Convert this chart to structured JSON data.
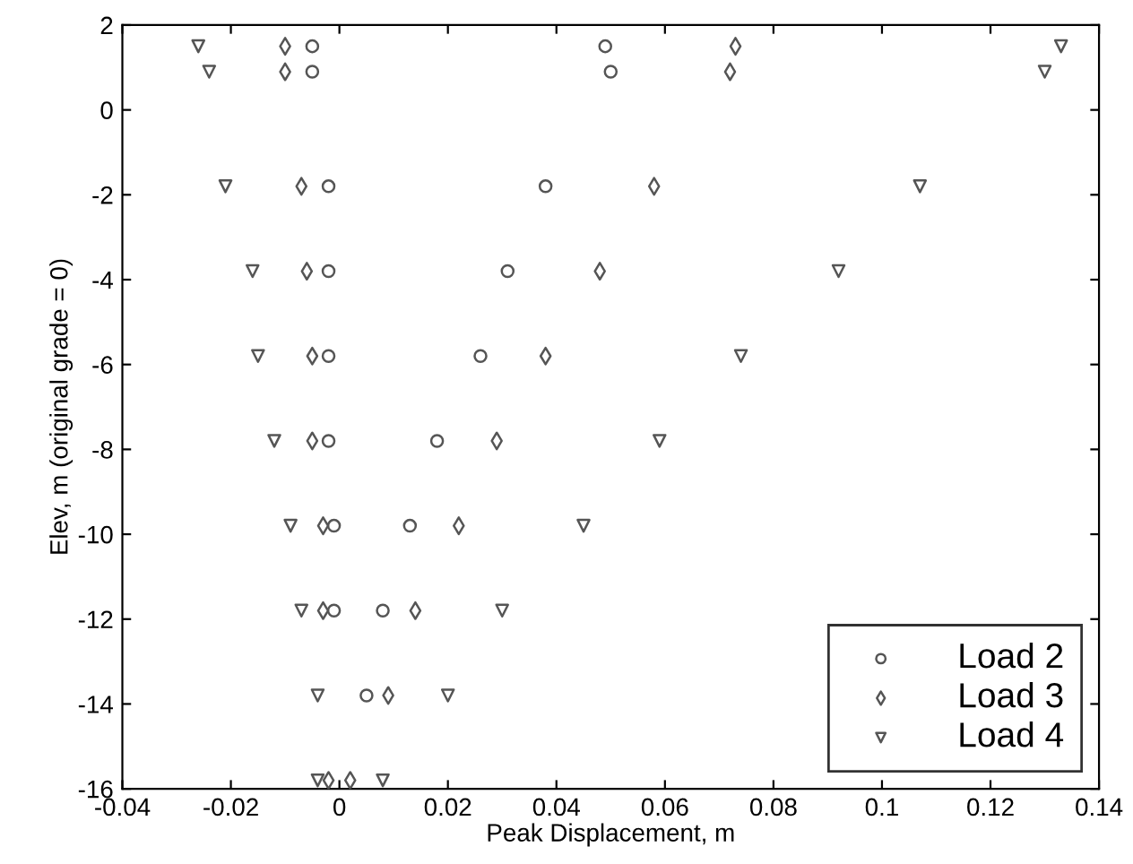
{
  "chart_data": {
    "type": "scatter",
    "xlabel": "Peak Displacement, m",
    "ylabel": "Elev, m (original grade = 0)",
    "xlim": [
      -0.04,
      0.14
    ],
    "xticks": [
      -0.04,
      -0.02,
      0,
      0.02,
      0.04,
      0.06,
      0.08,
      0.1,
      0.12,
      0.14
    ],
    "ylim": [
      -16,
      2
    ],
    "yticks": [
      -16,
      -14,
      -12,
      -10,
      -8,
      -6,
      -4,
      -2,
      0,
      2
    ],
    "grid": false,
    "legend": "bottom right",
    "series": [
      {
        "name": "Load 2",
        "color": "#555555",
        "marker": "circle",
        "x": [
          -0.005,
          0.049,
          -0.005,
          0.05,
          -0.002,
          0.038,
          -0.002,
          0.031,
          -0.002,
          0.026,
          -0.002,
          0.018,
          -0.001,
          0.013,
          -0.001,
          0.008,
          null,
          0.005,
          null,
          null
        ],
        "values": [
          1.5,
          1.5,
          0.9,
          0.9,
          -1.8,
          -1.8,
          -3.8,
          -3.8,
          -5.8,
          -5.8,
          -7.8,
          -7.8,
          -9.8,
          -9.8,
          -11.8,
          -11.8,
          null,
          -13.8,
          null,
          null
        ]
      },
      {
        "name": "Load 3",
        "color": "#555555",
        "marker": "diamond",
        "x": [
          -0.01,
          0.073,
          -0.01,
          0.072,
          -0.007,
          0.058,
          -0.006,
          0.048,
          -0.005,
          0.038,
          -0.005,
          0.029,
          -0.003,
          0.022,
          -0.003,
          0.014,
          null,
          0.009,
          -0.002,
          0.002
        ],
        "values": [
          1.5,
          1.5,
          0.9,
          0.9,
          -1.8,
          -1.8,
          -3.8,
          -3.8,
          -5.8,
          -5.8,
          -7.8,
          -7.8,
          -9.8,
          -9.8,
          -11.8,
          -11.8,
          null,
          -13.8,
          -15.8,
          -15.8
        ]
      },
      {
        "name": "Load 4",
        "color": "#555555",
        "marker": "triangle",
        "x": [
          -0.026,
          0.133,
          -0.024,
          0.13,
          -0.021,
          0.107,
          -0.016,
          0.092,
          -0.015,
          0.074,
          -0.012,
          0.059,
          -0.009,
          0.045,
          -0.007,
          0.03,
          -0.004,
          0.02,
          -0.004,
          0.008
        ],
        "values": [
          1.5,
          1.5,
          0.9,
          0.9,
          -1.8,
          -1.8,
          -3.8,
          -3.8,
          -5.8,
          -5.8,
          -7.8,
          -7.8,
          -9.8,
          -9.8,
          -11.8,
          -11.8,
          -13.8,
          -13.8,
          -15.8,
          -15.8
        ]
      }
    ]
  }
}
